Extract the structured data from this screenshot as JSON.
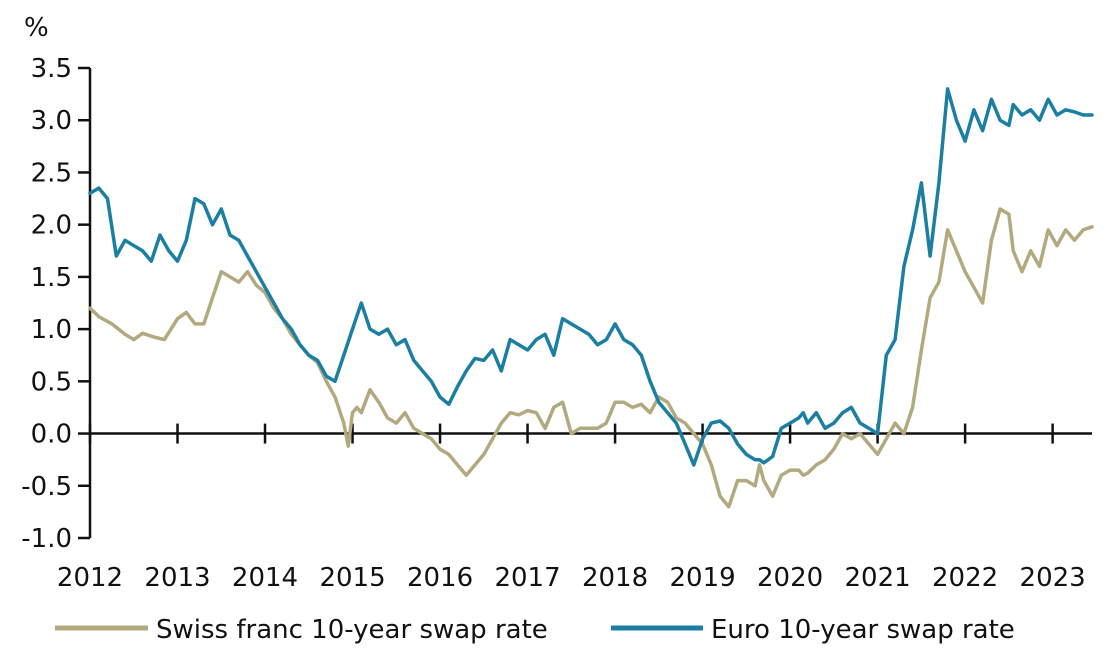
{
  "chart_data": {
    "type": "line",
    "ylabel": "%",
    "ylim": [
      -1.0,
      3.5
    ],
    "xlim": [
      2012.0,
      2023.45
    ],
    "yticks": [
      "3.5",
      "3.0",
      "2.5",
      "2.0",
      "1.5",
      "1.0",
      "0.5",
      "0.0",
      "-0.5",
      "-1.0"
    ],
    "ytick_values": [
      3.5,
      3.0,
      2.5,
      2.0,
      1.5,
      1.0,
      0.5,
      0.0,
      -0.5,
      -1.0
    ],
    "xticks": [
      "2012",
      "2013",
      "2014",
      "2015",
      "2016",
      "2017",
      "2018",
      "2019",
      "2020",
      "2021",
      "2022",
      "2023"
    ],
    "legend_position": "bottom",
    "series": [
      {
        "name": "Swiss franc 10-year swap rate",
        "color": "#b3a97e",
        "x": [
          2012.0,
          2012.1,
          2012.25,
          2012.4,
          2012.5,
          2012.6,
          2012.75,
          2012.85,
          2013.0,
          2013.1,
          2013.2,
          2013.3,
          2013.4,
          2013.5,
          2013.6,
          2013.7,
          2013.8,
          2013.9,
          2014.0,
          2014.1,
          2014.2,
          2014.3,
          2014.4,
          2014.5,
          2014.6,
          2014.7,
          2014.8,
          2014.9,
          2014.95,
          2015.0,
          2015.05,
          2015.1,
          2015.2,
          2015.3,
          2015.4,
          2015.5,
          2015.6,
          2015.7,
          2015.8,
          2015.9,
          2016.0,
          2016.1,
          2016.2,
          2016.3,
          2016.4,
          2016.5,
          2016.6,
          2016.7,
          2016.8,
          2016.9,
          2017.0,
          2017.1,
          2017.2,
          2017.3,
          2017.4,
          2017.5,
          2017.6,
          2017.7,
          2017.8,
          2017.9,
          2018.0,
          2018.1,
          2018.2,
          2018.3,
          2018.4,
          2018.5,
          2018.6,
          2018.7,
          2018.8,
          2018.9,
          2019.0,
          2019.1,
          2019.2,
          2019.3,
          2019.4,
          2019.5,
          2019.6,
          2019.65,
          2019.7,
          2019.8,
          2019.9,
          2020.0,
          2020.1,
          2020.15,
          2020.2,
          2020.3,
          2020.4,
          2020.5,
          2020.6,
          2020.7,
          2020.8,
          2020.9,
          2021.0,
          2021.1,
          2021.2,
          2021.3,
          2021.4,
          2021.5,
          2021.6,
          2021.7,
          2021.8,
          2021.9,
          2022.0,
          2022.1,
          2022.2,
          2022.3,
          2022.4,
          2022.5,
          2022.55,
          2022.65,
          2022.75,
          2022.85,
          2022.95,
          2023.05,
          2023.15,
          2023.25,
          2023.35,
          2023.45
        ],
        "y": [
          1.2,
          1.12,
          1.05,
          0.95,
          0.9,
          0.96,
          0.92,
          0.9,
          1.1,
          1.16,
          1.05,
          1.05,
          1.3,
          1.55,
          1.5,
          1.45,
          1.55,
          1.42,
          1.35,
          1.2,
          1.1,
          0.95,
          0.85,
          0.75,
          0.68,
          0.5,
          0.35,
          0.1,
          -0.12,
          0.2,
          0.25,
          0.2,
          0.42,
          0.3,
          0.15,
          0.1,
          0.2,
          0.05,
          0.0,
          -0.05,
          -0.15,
          -0.2,
          -0.3,
          -0.4,
          -0.3,
          -0.2,
          -0.05,
          0.1,
          0.2,
          0.18,
          0.22,
          0.2,
          0.05,
          0.25,
          0.3,
          0.0,
          0.05,
          0.05,
          0.05,
          0.1,
          0.3,
          0.3,
          0.25,
          0.28,
          0.2,
          0.35,
          0.3,
          0.15,
          0.1,
          0.0,
          -0.1,
          -0.3,
          -0.6,
          -0.7,
          -0.45,
          -0.45,
          -0.5,
          -0.3,
          -0.45,
          -0.6,
          -0.4,
          -0.35,
          -0.35,
          -0.4,
          -0.38,
          -0.3,
          -0.25,
          -0.15,
          0.0,
          -0.05,
          0.0,
          -0.1,
          -0.2,
          -0.05,
          0.1,
          0.0,
          0.25,
          0.8,
          1.3,
          1.45,
          1.95,
          1.75,
          1.55,
          1.4,
          1.25,
          1.85,
          2.15,
          2.1,
          1.75,
          1.55,
          1.75,
          1.6,
          1.95,
          1.8,
          1.95,
          1.85,
          1.95,
          1.98
        ],
        "x_note": "",
        "y_note": ""
      },
      {
        "name": "Euro 10-year swap rate",
        "color": "#1b7ea3",
        "x": [
          2012.0,
          2012.1,
          2012.2,
          2012.3,
          2012.4,
          2012.5,
          2012.6,
          2012.7,
          2012.8,
          2012.9,
          2013.0,
          2013.1,
          2013.2,
          2013.3,
          2013.4,
          2013.5,
          2013.6,
          2013.7,
          2013.8,
          2013.9,
          2014.0,
          2014.1,
          2014.2,
          2014.3,
          2014.4,
          2014.5,
          2014.6,
          2014.7,
          2014.8,
          2014.9,
          2015.0,
          2015.1,
          2015.2,
          2015.3,
          2015.4,
          2015.5,
          2015.6,
          2015.7,
          2015.8,
          2015.9,
          2016.0,
          2016.1,
          2016.2,
          2016.3,
          2016.4,
          2016.5,
          2016.6,
          2016.7,
          2016.8,
          2016.9,
          2017.0,
          2017.1,
          2017.2,
          2017.3,
          2017.4,
          2017.5,
          2017.6,
          2017.7,
          2017.8,
          2017.9,
          2018.0,
          2018.1,
          2018.2,
          2018.3,
          2018.4,
          2018.5,
          2018.6,
          2018.7,
          2018.8,
          2018.9,
          2019.0,
          2019.1,
          2019.2,
          2019.3,
          2019.4,
          2019.5,
          2019.6,
          2019.65,
          2019.7,
          2019.8,
          2019.9,
          2020.0,
          2020.1,
          2020.15,
          2020.2,
          2020.3,
          2020.4,
          2020.5,
          2020.6,
          2020.7,
          2020.8,
          2020.9,
          2021.0,
          2021.1,
          2021.2,
          2021.3,
          2021.4,
          2021.5,
          2021.6,
          2021.7,
          2021.8,
          2021.9,
          2022.0,
          2022.1,
          2022.2,
          2022.3,
          2022.4,
          2022.5,
          2022.55,
          2022.65,
          2022.75,
          2022.85,
          2022.95,
          2023.05,
          2023.15,
          2023.25,
          2023.35,
          2023.45
        ],
        "y": [
          2.3,
          2.35,
          2.25,
          1.7,
          1.85,
          1.8,
          1.75,
          1.65,
          1.9,
          1.75,
          1.65,
          1.85,
          2.25,
          2.2,
          2.0,
          2.15,
          1.9,
          1.85,
          1.7,
          1.55,
          1.4,
          1.25,
          1.1,
          1.0,
          0.85,
          0.75,
          0.7,
          0.55,
          0.5,
          0.75,
          1.0,
          1.25,
          1.0,
          0.95,
          1.0,
          0.85,
          0.9,
          0.7,
          0.6,
          0.5,
          0.35,
          0.28,
          0.45,
          0.6,
          0.72,
          0.7,
          0.8,
          0.6,
          0.9,
          0.85,
          0.8,
          0.9,
          0.95,
          0.75,
          1.1,
          1.05,
          1.0,
          0.95,
          0.85,
          0.9,
          1.05,
          0.9,
          0.85,
          0.75,
          0.5,
          0.3,
          0.2,
          0.1,
          -0.1,
          -0.3,
          -0.05,
          0.1,
          0.12,
          0.05,
          -0.1,
          -0.2,
          -0.25,
          -0.25,
          -0.28,
          -0.22,
          0.05,
          0.1,
          0.15,
          0.2,
          0.1,
          0.2,
          0.05,
          0.1,
          0.2,
          0.25,
          0.1,
          0.05,
          0.0,
          0.75,
          0.9,
          1.6,
          1.95,
          2.4,
          1.7,
          2.4,
          3.3,
          3.0,
          2.8,
          3.1,
          2.9,
          3.2,
          3.0,
          2.95,
          3.15,
          3.05,
          3.1,
          3.0,
          3.2,
          3.05,
          3.1,
          3.08,
          3.05,
          3.05
        ],
        "x_note": "",
        "y_note": ""
      }
    ]
  },
  "legend": {
    "swiss_label": "Swiss franc 10-year swap rate",
    "euro_label": "Euro 10-year swap rate"
  },
  "colors": {
    "swiss": "#b3a97e",
    "euro": "#1b7ea3",
    "axis": "#111111"
  }
}
